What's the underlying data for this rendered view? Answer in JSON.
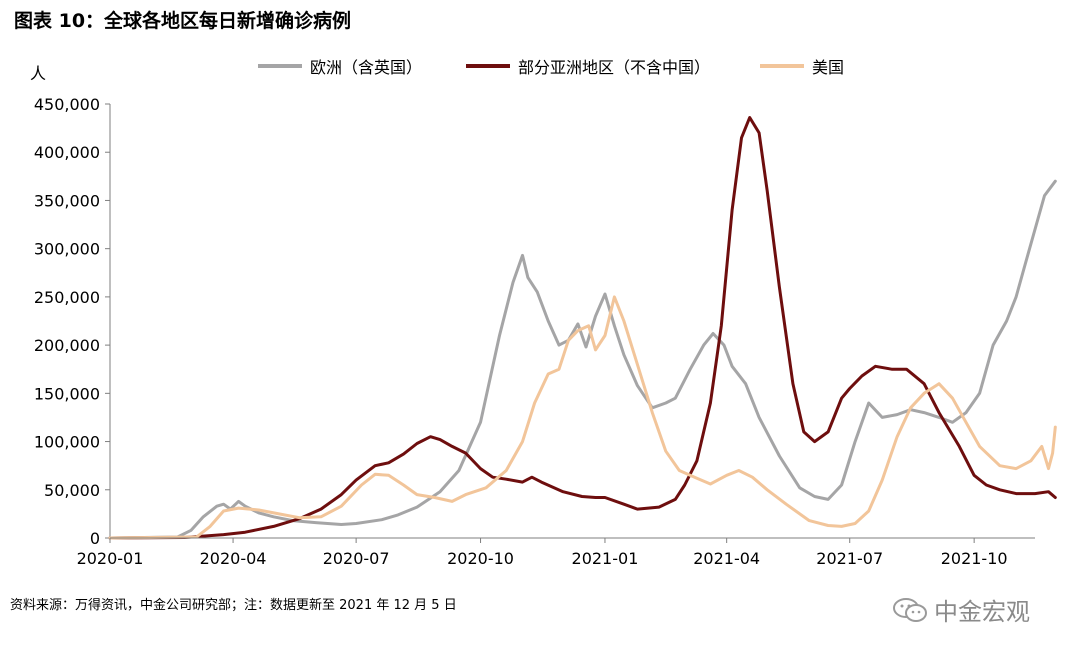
{
  "figure": {
    "title": "图表 10：全球各地区每日新增确诊病例",
    "y_unit": "人",
    "source": "资料来源：万得资讯，中金公司研究部；注：数据更新至 2021 年 12 月 5 日",
    "watermark": "中金宏观"
  },
  "colors": {
    "europe": "#a5a5a6",
    "asia": "#6e0e0e",
    "usa": "#f2c59a",
    "axis": "#7f7f7f"
  },
  "chart_data": {
    "type": "line",
    "title": "图表 10：全球各地区每日新增确诊病例",
    "ylabel": "人",
    "ylim": [
      0,
      450000
    ],
    "xlim": [
      "2020-01-01",
      "2021-11-15"
    ],
    "x_ticks": [
      "2020-01",
      "2020-04",
      "2020-07",
      "2020-10",
      "2021-01",
      "2021-04",
      "2021-07",
      "2021-10"
    ],
    "y_ticks": [
      "0",
      "50,000",
      "100,000",
      "150,000",
      "200,000",
      "250,000",
      "300,000",
      "350,000",
      "400,000",
      "450,000"
    ],
    "legend_position": "top",
    "series": [
      {
        "name": "欧洲（含英国）",
        "color": "#a5a5a6",
        "points": [
          [
            "2020-01-01",
            0
          ],
          [
            "2020-02-20",
            1000
          ],
          [
            "2020-03-01",
            8000
          ],
          [
            "2020-03-10",
            22000
          ],
          [
            "2020-03-20",
            33000
          ],
          [
            "2020-03-25",
            35000
          ],
          [
            "2020-03-30",
            30000
          ],
          [
            "2020-04-05",
            38000
          ],
          [
            "2020-04-10",
            33000
          ],
          [
            "2020-04-20",
            26000
          ],
          [
            "2020-05-01",
            22000
          ],
          [
            "2020-05-15",
            18000
          ],
          [
            "2020-06-01",
            16000
          ],
          [
            "2020-06-20",
            14000
          ],
          [
            "2020-07-01",
            15000
          ],
          [
            "2020-07-20",
            19000
          ],
          [
            "2020-08-01",
            24000
          ],
          [
            "2020-08-15",
            32000
          ],
          [
            "2020-09-01",
            48000
          ],
          [
            "2020-09-15",
            70000
          ],
          [
            "2020-10-01",
            120000
          ],
          [
            "2020-10-15",
            210000
          ],
          [
            "2020-10-25",
            265000
          ],
          [
            "2020-11-01",
            293000
          ],
          [
            "2020-11-05",
            270000
          ],
          [
            "2020-11-12",
            255000
          ],
          [
            "2020-11-20",
            225000
          ],
          [
            "2020-11-28",
            200000
          ],
          [
            "2020-12-05",
            205000
          ],
          [
            "2020-12-12",
            222000
          ],
          [
            "2020-12-18",
            198000
          ],
          [
            "2020-12-25",
            230000
          ],
          [
            "2021-01-01",
            253000
          ],
          [
            "2021-01-08",
            220000
          ],
          [
            "2021-01-15",
            190000
          ],
          [
            "2021-01-25",
            158000
          ],
          [
            "2021-02-05",
            135000
          ],
          [
            "2021-02-15",
            140000
          ],
          [
            "2021-02-22",
            145000
          ],
          [
            "2021-03-05",
            175000
          ],
          [
            "2021-03-15",
            200000
          ],
          [
            "2021-03-22",
            212000
          ],
          [
            "2021-03-30",
            200000
          ],
          [
            "2021-04-05",
            178000
          ],
          [
            "2021-04-15",
            160000
          ],
          [
            "2021-04-25",
            125000
          ],
          [
            "2021-05-10",
            85000
          ],
          [
            "2021-05-25",
            52000
          ],
          [
            "2021-06-05",
            43000
          ],
          [
            "2021-06-15",
            40000
          ],
          [
            "2021-06-25",
            55000
          ],
          [
            "2021-07-05",
            100000
          ],
          [
            "2021-07-15",
            140000
          ],
          [
            "2021-07-25",
            125000
          ],
          [
            "2021-08-05",
            128000
          ],
          [
            "2021-08-15",
            133000
          ],
          [
            "2021-08-25",
            130000
          ],
          [
            "2021-09-05",
            125000
          ],
          [
            "2021-09-15",
            120000
          ],
          [
            "2021-09-25",
            130000
          ],
          [
            "2021-10-05",
            150000
          ],
          [
            "2021-10-15",
            200000
          ],
          [
            "2021-10-25",
            225000
          ],
          [
            "2021-11-01",
            250000
          ],
          [
            "2021-11-08",
            285000
          ],
          [
            "2021-11-15",
            320000
          ],
          [
            "2021-11-22",
            355000
          ],
          [
            "2021-11-30",
            370000
          ]
        ]
      },
      {
        "name": "部分亚洲地区（不含中国）",
        "color": "#6e0e0e",
        "points": [
          [
            "2020-01-01",
            0
          ],
          [
            "2020-02-25",
            500
          ],
          [
            "2020-03-10",
            2000
          ],
          [
            "2020-03-25",
            3500
          ],
          [
            "2020-04-10",
            6000
          ],
          [
            "2020-05-01",
            12000
          ],
          [
            "2020-05-20",
            20000
          ],
          [
            "2020-06-05",
            30000
          ],
          [
            "2020-06-20",
            45000
          ],
          [
            "2020-07-01",
            60000
          ],
          [
            "2020-07-15",
            75000
          ],
          [
            "2020-07-25",
            78000
          ],
          [
            "2020-08-05",
            87000
          ],
          [
            "2020-08-15",
            98000
          ],
          [
            "2020-08-25",
            105000
          ],
          [
            "2020-09-01",
            102000
          ],
          [
            "2020-09-10",
            95000
          ],
          [
            "2020-09-20",
            88000
          ],
          [
            "2020-10-01",
            72000
          ],
          [
            "2020-10-10",
            63000
          ],
          [
            "2020-10-20",
            61000
          ],
          [
            "2020-11-01",
            58000
          ],
          [
            "2020-11-08",
            63000
          ],
          [
            "2020-11-15",
            58000
          ],
          [
            "2020-12-01",
            48000
          ],
          [
            "2020-12-15",
            43000
          ],
          [
            "2020-12-25",
            42000
          ],
          [
            "2021-01-01",
            42000
          ],
          [
            "2021-01-15",
            35000
          ],
          [
            "2021-01-25",
            30000
          ],
          [
            "2021-02-10",
            32000
          ],
          [
            "2021-02-22",
            40000
          ],
          [
            "2021-03-01",
            55000
          ],
          [
            "2021-03-10",
            80000
          ],
          [
            "2021-03-20",
            140000
          ],
          [
            "2021-03-28",
            220000
          ],
          [
            "2021-04-05",
            340000
          ],
          [
            "2021-04-12",
            415000
          ],
          [
            "2021-04-18",
            436000
          ],
          [
            "2021-04-25",
            420000
          ],
          [
            "2021-05-01",
            360000
          ],
          [
            "2021-05-10",
            260000
          ],
          [
            "2021-05-20",
            160000
          ],
          [
            "2021-05-28",
            110000
          ],
          [
            "2021-06-05",
            100000
          ],
          [
            "2021-06-15",
            110000
          ],
          [
            "2021-06-25",
            145000
          ],
          [
            "2021-07-01",
            155000
          ],
          [
            "2021-07-10",
            168000
          ],
          [
            "2021-07-20",
            178000
          ],
          [
            "2021-08-01",
            175000
          ],
          [
            "2021-08-12",
            175000
          ],
          [
            "2021-08-25",
            160000
          ],
          [
            "2021-09-05",
            130000
          ],
          [
            "2021-09-20",
            95000
          ],
          [
            "2021-10-01",
            65000
          ],
          [
            "2021-10-10",
            55000
          ],
          [
            "2021-10-20",
            50000
          ],
          [
            "2021-11-01",
            46000
          ],
          [
            "2021-11-15",
            46000
          ],
          [
            "2021-11-25",
            48000
          ],
          [
            "2021-11-30",
            42000
          ]
        ]
      },
      {
        "name": "美国",
        "color": "#f2c59a",
        "points": [
          [
            "2020-01-01",
            0
          ],
          [
            "2020-03-05",
            1000
          ],
          [
            "2020-03-15",
            12000
          ],
          [
            "2020-03-25",
            28000
          ],
          [
            "2020-04-05",
            31000
          ],
          [
            "2020-04-20",
            29000
          ],
          [
            "2020-05-05",
            25000
          ],
          [
            "2020-05-20",
            21000
          ],
          [
            "2020-06-05",
            22000
          ],
          [
            "2020-06-20",
            33000
          ],
          [
            "2020-07-05",
            55000
          ],
          [
            "2020-07-15",
            66000
          ],
          [
            "2020-07-25",
            65000
          ],
          [
            "2020-08-05",
            55000
          ],
          [
            "2020-08-15",
            45000
          ],
          [
            "2020-08-28",
            42000
          ],
          [
            "2020-09-10",
            38000
          ],
          [
            "2020-09-20",
            45000
          ],
          [
            "2020-10-05",
            52000
          ],
          [
            "2020-10-20",
            70000
          ],
          [
            "2020-11-01",
            100000
          ],
          [
            "2020-11-10",
            140000
          ],
          [
            "2020-11-20",
            170000
          ],
          [
            "2020-11-28",
            175000
          ],
          [
            "2020-12-05",
            205000
          ],
          [
            "2020-12-12",
            215000
          ],
          [
            "2020-12-20",
            220000
          ],
          [
            "2020-12-25",
            195000
          ],
          [
            "2021-01-01",
            210000
          ],
          [
            "2021-01-08",
            250000
          ],
          [
            "2021-01-15",
            225000
          ],
          [
            "2021-01-25",
            180000
          ],
          [
            "2021-02-05",
            130000
          ],
          [
            "2021-02-15",
            90000
          ],
          [
            "2021-02-25",
            70000
          ],
          [
            "2021-03-10",
            62000
          ],
          [
            "2021-03-20",
            56000
          ],
          [
            "2021-04-01",
            65000
          ],
          [
            "2021-04-10",
            70000
          ],
          [
            "2021-04-20",
            63000
          ],
          [
            "2021-05-01",
            50000
          ],
          [
            "2021-05-15",
            35000
          ],
          [
            "2021-06-01",
            18000
          ],
          [
            "2021-06-15",
            13000
          ],
          [
            "2021-06-25",
            12000
          ],
          [
            "2021-07-05",
            15000
          ],
          [
            "2021-07-15",
            28000
          ],
          [
            "2021-07-25",
            60000
          ],
          [
            "2021-08-05",
            105000
          ],
          [
            "2021-08-15",
            135000
          ],
          [
            "2021-08-25",
            150000
          ],
          [
            "2021-09-05",
            160000
          ],
          [
            "2021-09-15",
            145000
          ],
          [
            "2021-09-25",
            120000
          ],
          [
            "2021-10-05",
            95000
          ],
          [
            "2021-10-20",
            75000
          ],
          [
            "2021-11-01",
            72000
          ],
          [
            "2021-11-12",
            80000
          ],
          [
            "2021-11-20",
            95000
          ],
          [
            "2021-11-25",
            72000
          ],
          [
            "2021-11-28",
            88000
          ],
          [
            "2021-11-30",
            115000
          ]
        ]
      }
    ]
  }
}
